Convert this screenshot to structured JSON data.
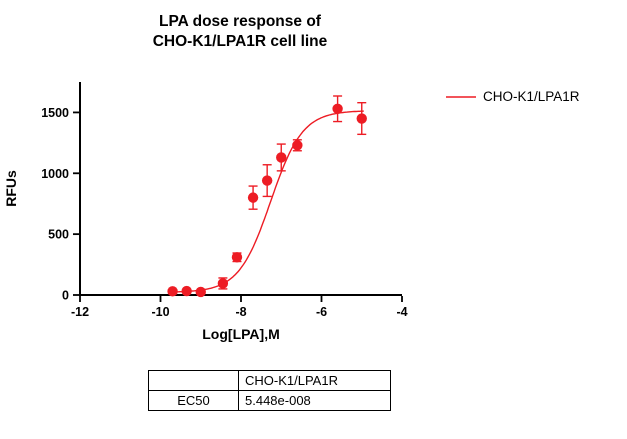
{
  "chart_data": {
    "type": "scatter",
    "title": "LPA dose response of CHO-K1/LPA1R cell line",
    "title_lines": [
      "LPA dose response of",
      "CHO-K1/LPA1R cell line"
    ],
    "xlabel": "Log[LPA],M",
    "ylabel": "RFUs",
    "xlim": [
      -12,
      -4
    ],
    "ylim": [
      0,
      1750
    ],
    "xticks": [
      -12,
      -10,
      -8,
      -6,
      -4
    ],
    "yticks": [
      0,
      500,
      1000,
      1500
    ],
    "grid": false,
    "legend": {
      "position": "right",
      "label": "CHO-K1/LPA1R"
    },
    "series": [
      {
        "name": "CHO-K1/LPA1R",
        "color": "#ed1c24",
        "marker": "circle",
        "points": [
          {
            "x": -9.7,
            "y": 30,
            "err": 0
          },
          {
            "x": -9.35,
            "y": 32,
            "err": 0
          },
          {
            "x": -9.0,
            "y": 25,
            "err": 0
          },
          {
            "x": -8.45,
            "y": 95,
            "err": 45
          },
          {
            "x": -8.1,
            "y": 310,
            "err": 35
          },
          {
            "x": -7.7,
            "y": 800,
            "err": 95
          },
          {
            "x": -7.35,
            "y": 940,
            "err": 130
          },
          {
            "x": -7.0,
            "y": 1130,
            "err": 110
          },
          {
            "x": -6.6,
            "y": 1230,
            "err": 45
          },
          {
            "x": -5.6,
            "y": 1530,
            "err": 105
          },
          {
            "x": -5.0,
            "y": 1450,
            "err": 130
          }
        ],
        "fit": {
          "model": "sigmoidal dose-response",
          "bottom": 22,
          "top": 1515,
          "logEC50": -7.2637,
          "hillslope": 1.1,
          "range": [
            -9.75,
            -4.95
          ]
        }
      }
    ]
  },
  "results_table": {
    "header": [
      "",
      "CHO-K1/LPA1R"
    ],
    "rows": [
      [
        "EC50",
        "5.448e-008"
      ]
    ]
  },
  "colors": {
    "series_red": "#ed1c24",
    "axis_black": "#000000"
  }
}
